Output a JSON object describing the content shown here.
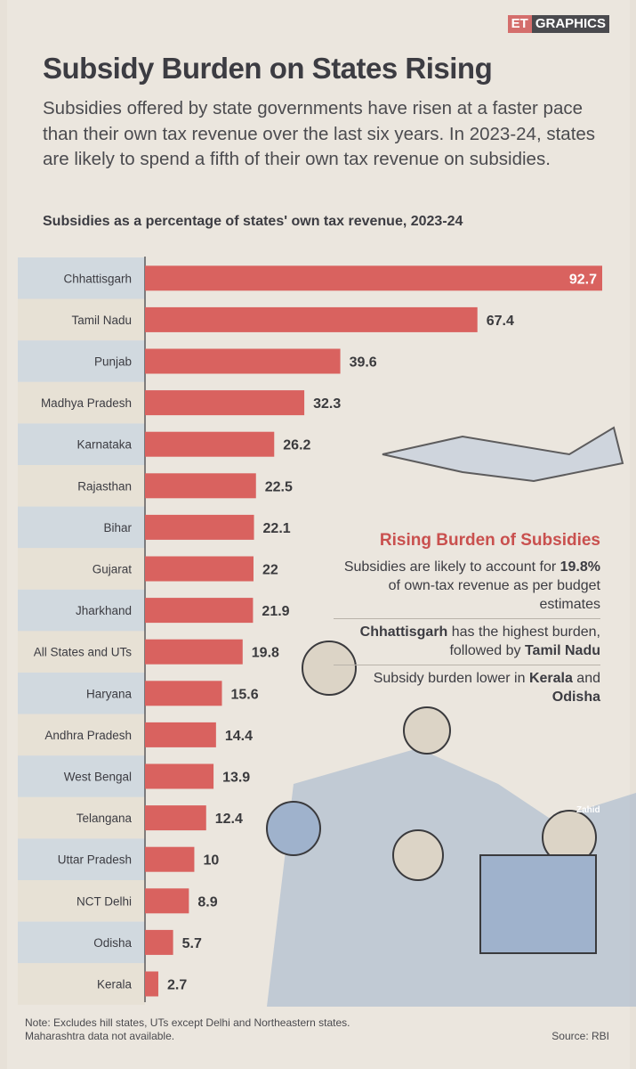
{
  "brand": {
    "prefix": "ET",
    "label": "GRAPHICS"
  },
  "header": {
    "title": "Subsidy Burden on States Rising",
    "intro": "Subsidies offered by state governments have risen at a faster pace than their own tax revenue over the last six years. In 2023-24, states are likely to spend a fifth of their own tax revenue on subsidies."
  },
  "chart_data": {
    "type": "bar",
    "orientation": "horizontal",
    "title": "Subsidies as a percentage of states' own tax revenue, 2023-24",
    "xlabel": "",
    "ylabel": "",
    "unit": "%",
    "xlim": [
      0,
      92.7
    ],
    "grid": false,
    "categories": [
      "Chhattisgarh",
      "Tamil Nadu",
      "Punjab",
      "Madhya Pradesh",
      "Karnataka",
      "Rajasthan",
      "Bihar",
      "Gujarat",
      "Jharkhand",
      "All States and UTs",
      "Haryana",
      "Andhra Pradesh",
      "West Bengal",
      "Telangana",
      "Uttar Pradesh",
      "NCT Delhi",
      "Odisha",
      "Kerala"
    ],
    "values": [
      92.7,
      67.4,
      39.6,
      32.3,
      26.2,
      22.5,
      22.1,
      22,
      21.9,
      19.8,
      15.6,
      14.4,
      13.9,
      12.4,
      10,
      8.9,
      5.7,
      2.7
    ],
    "labels": [
      "92.7",
      "67.4",
      "39.6",
      "32.3",
      "26.2",
      "22.5",
      "22.1",
      "22",
      "21.9",
      "19.8",
      "15.6",
      "14.4",
      "13.9",
      "12.4",
      "10",
      "8.9",
      "5.7",
      "2.7"
    ],
    "bar_color": "#d9625f"
  },
  "sidebox": {
    "title": "Rising Burden of Subsidies",
    "p1_pre": "Subsidies are likely to account for ",
    "p1_bold": "19.8%",
    "p1_post": " of own-tax revenue as per budget estimates",
    "p2_bold1": "Chhattisgarh",
    "p2_mid": " has the highest burden, followed by ",
    "p2_bold2": "Tamil Nadu",
    "p3_pre": "Subsidy burden lower in ",
    "p3_bold1": "Kerala",
    "p3_mid": " and ",
    "p3_bold2": "Odisha"
  },
  "illustration_credit": "Zahid",
  "footer": {
    "note_line1": "Note: Excludes hill states, UTs except Delhi and Northeastern states.",
    "note_line2": "Maharashtra data not available.",
    "source": "Source: RBI"
  }
}
